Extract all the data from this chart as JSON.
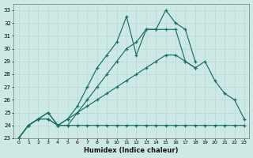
{
  "xlabel": "Humidex (Indice chaleur)",
  "ylabel": "",
  "bg_color": "#cce9e5",
  "line_color": "#1a6e63",
  "grid_color": "#b8d8d4",
  "xlim": [
    -0.5,
    23.5
  ],
  "ylim": [
    23,
    33.5
  ],
  "xticks": [
    0,
    1,
    2,
    3,
    4,
    5,
    6,
    7,
    8,
    9,
    10,
    11,
    12,
    13,
    14,
    15,
    16,
    17,
    18,
    19,
    20,
    21,
    22,
    23
  ],
  "yticks": [
    23,
    24,
    25,
    26,
    27,
    28,
    29,
    30,
    31,
    32,
    33
  ],
  "series1": {
    "x": [
      0,
      1,
      2,
      3,
      4,
      5,
      6,
      7,
      8,
      9,
      10,
      11,
      12,
      13,
      14,
      15,
      16,
      17,
      18,
      19,
      20,
      21,
      22,
      23
    ],
    "y": [
      23.0,
      24.0,
      24.5,
      25.0,
      24.0,
      24.5,
      25.5,
      27.0,
      28.5,
      29.5,
      30.5,
      32.5,
      29.5,
      31.5,
      31.5,
      33.0,
      32.0,
      31.5,
      29.0,
      null,
      null,
      null,
      null,
      null
    ]
  },
  "series2": {
    "x": [
      0,
      1,
      2,
      3,
      4,
      5,
      6,
      7,
      8,
      9,
      10,
      11,
      12,
      13,
      14,
      15,
      16,
      17,
      18,
      19,
      20,
      21,
      22,
      23
    ],
    "y": [
      23.0,
      24.0,
      24.5,
      25.0,
      24.0,
      24.0,
      25.0,
      26.0,
      27.0,
      28.0,
      29.0,
      30.0,
      30.5,
      31.5,
      31.5,
      31.5,
      31.5,
      29.0,
      28.5,
      29.0,
      27.5,
      26.5,
      26.0,
      24.5
    ]
  },
  "series3": {
    "x": [
      0,
      1,
      2,
      3,
      4,
      5,
      6,
      7,
      8,
      9,
      10,
      11,
      12,
      13,
      14,
      15,
      16,
      17,
      18,
      19,
      20,
      21,
      22,
      23
    ],
    "y": [
      23.0,
      24.0,
      24.5,
      24.5,
      24.0,
      24.5,
      25.0,
      25.5,
      26.0,
      26.5,
      27.0,
      27.5,
      28.0,
      28.5,
      29.0,
      29.5,
      29.5,
      29.0,
      28.5,
      null,
      null,
      null,
      null,
      null
    ]
  },
  "series4": {
    "x": [
      0,
      1,
      2,
      3,
      4,
      5,
      6,
      7,
      8,
      9,
      10,
      11,
      12,
      13,
      14,
      15,
      16,
      17,
      18,
      19,
      20,
      21,
      22,
      23
    ],
    "y": [
      23.0,
      24.0,
      24.5,
      24.5,
      24.0,
      24.0,
      24.0,
      24.0,
      24.0,
      24.0,
      24.0,
      24.0,
      24.0,
      24.0,
      24.0,
      24.0,
      24.0,
      24.0,
      24.0,
      24.0,
      24.0,
      24.0,
      24.0,
      24.0
    ]
  }
}
